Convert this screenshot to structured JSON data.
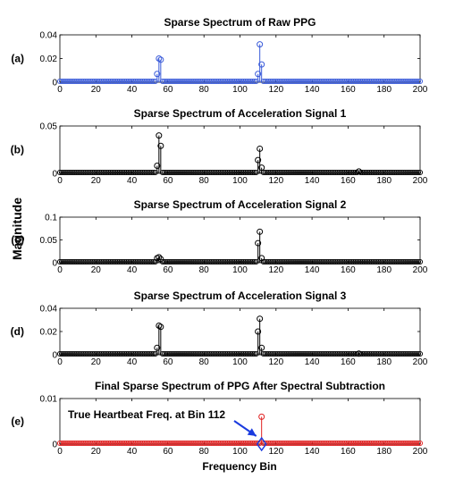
{
  "figure": {
    "ylabel": "Magnitude",
    "xlabel": "Frequency Bin"
  },
  "annotation": {
    "text": "True Heartbeat Freq. at Bin 112",
    "color": "#1a3bdf",
    "target_panel": 4,
    "target_x": 112,
    "target_y": 0
  },
  "chart_data": [
    {
      "type": "stem",
      "panel_label": "(a)",
      "title": "Sparse Spectrum of Raw PPG",
      "color": "#3a5bd9",
      "xlim": [
        0,
        200
      ],
      "ylim": [
        0,
        0.04
      ],
      "xticks": [
        0,
        20,
        40,
        60,
        80,
        100,
        120,
        140,
        160,
        180,
        200
      ],
      "yticks": [
        0,
        0.02,
        0.04
      ],
      "ytick_labels": [
        "0",
        "0.02",
        "0.04"
      ],
      "x": [
        54,
        55,
        56,
        110,
        111,
        112
      ],
      "values": [
        0.007,
        0.02,
        0.019,
        0.007,
        0.032,
        0.015
      ]
    },
    {
      "type": "stem",
      "panel_label": "(b)",
      "title": "Sparse Spectrum of Acceleration Signal 1",
      "color": "#000000",
      "xlim": [
        0,
        200
      ],
      "ylim": [
        0,
        0.05
      ],
      "xticks": [
        0,
        20,
        40,
        60,
        80,
        100,
        120,
        140,
        160,
        180,
        200
      ],
      "yticks": [
        0,
        0.05
      ],
      "ytick_labels": [
        "0",
        "0.05"
      ],
      "x": [
        54,
        55,
        56,
        110,
        111,
        112,
        166
      ],
      "values": [
        0.008,
        0.04,
        0.029,
        0.014,
        0.026,
        0.006,
        0.002
      ]
    },
    {
      "type": "stem",
      "panel_label": "(c)",
      "title": "Sparse Spectrum of Acceleration Signal 2",
      "color": "#000000",
      "xlim": [
        0,
        200
      ],
      "ylim": [
        0,
        0.1
      ],
      "xticks": [
        0,
        20,
        40,
        60,
        80,
        100,
        120,
        140,
        160,
        180,
        200
      ],
      "yticks": [
        0,
        0.05,
        0.1
      ],
      "ytick_labels": [
        "0",
        "0.05",
        "0.1"
      ],
      "x": [
        54,
        55,
        56,
        110,
        111,
        112
      ],
      "values": [
        0.01,
        0.012,
        0.008,
        0.043,
        0.068,
        0.01
      ]
    },
    {
      "type": "stem",
      "panel_label": "(d)",
      "title": "Sparse Spectrum of Acceleration Signal 3",
      "color": "#000000",
      "xlim": [
        0,
        200
      ],
      "ylim": [
        0,
        0.04
      ],
      "xticks": [
        0,
        20,
        40,
        60,
        80,
        100,
        120,
        140,
        160,
        180,
        200
      ],
      "yticks": [
        0,
        0.02,
        0.04
      ],
      "ytick_labels": [
        "0",
        "0.02",
        "0.04"
      ],
      "x": [
        54,
        55,
        56,
        110,
        111,
        112,
        166
      ],
      "values": [
        0.006,
        0.025,
        0.024,
        0.02,
        0.031,
        0.006,
        0.001
      ]
    },
    {
      "type": "stem",
      "panel_label": "(e)",
      "title": "Final Sparse Spectrum of PPG After Spectral Subtraction",
      "color": "#e02020",
      "xlim": [
        0,
        200
      ],
      "ylim": [
        0,
        0.01
      ],
      "xticks": [
        0,
        20,
        40,
        60,
        80,
        100,
        120,
        140,
        160,
        180,
        200
      ],
      "yticks": [
        0,
        0.01
      ],
      "ytick_labels": [
        "0",
        "0.01"
      ],
      "x": [
        112
      ],
      "values": [
        0.006
      ]
    }
  ]
}
